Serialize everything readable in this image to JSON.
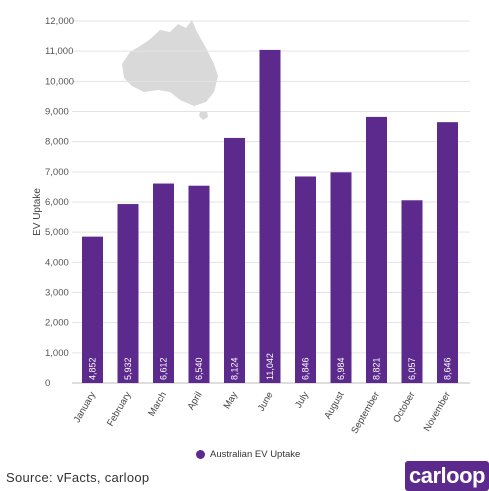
{
  "colors": {
    "bar": "#5b2a8c",
    "grid": "#e3e3e3",
    "map": "#d9d9d9",
    "logo_bg": "#5b2a8c"
  },
  "chart_data": {
    "type": "bar",
    "ylabel": "EV Uptake",
    "xlabel": "",
    "ylim": [
      0,
      12000
    ],
    "yticks": [
      0,
      1000,
      2000,
      3000,
      4000,
      5000,
      6000,
      7000,
      8000,
      9000,
      10000,
      11000,
      12000
    ],
    "ytick_labels": [
      "0",
      "1,000",
      "2,000",
      "3,000",
      "4,000",
      "5,000",
      "6,000",
      "7,000",
      "8,000",
      "9,000",
      "10,000",
      "11,000",
      "12,000"
    ],
    "grid": true,
    "legend_position": "bottom-center",
    "categories": [
      "January",
      "February",
      "March",
      "April",
      "May",
      "June",
      "July",
      "August",
      "September",
      "October",
      "November"
    ],
    "series": [
      {
        "name": "Australian EV Uptake",
        "values": [
          4852,
          5932,
          6612,
          6540,
          8124,
          11042,
          6846,
          6984,
          8821,
          6057,
          8646
        ],
        "labels": [
          "4,852",
          "5,932",
          "6,612",
          "6,540",
          "8,124",
          "11,042",
          "6,846",
          "6,984",
          "8,821",
          "6,057",
          "8,646"
        ]
      }
    ]
  },
  "source_text": "Source: vFacts, carloop",
  "logo_text": "carloop"
}
